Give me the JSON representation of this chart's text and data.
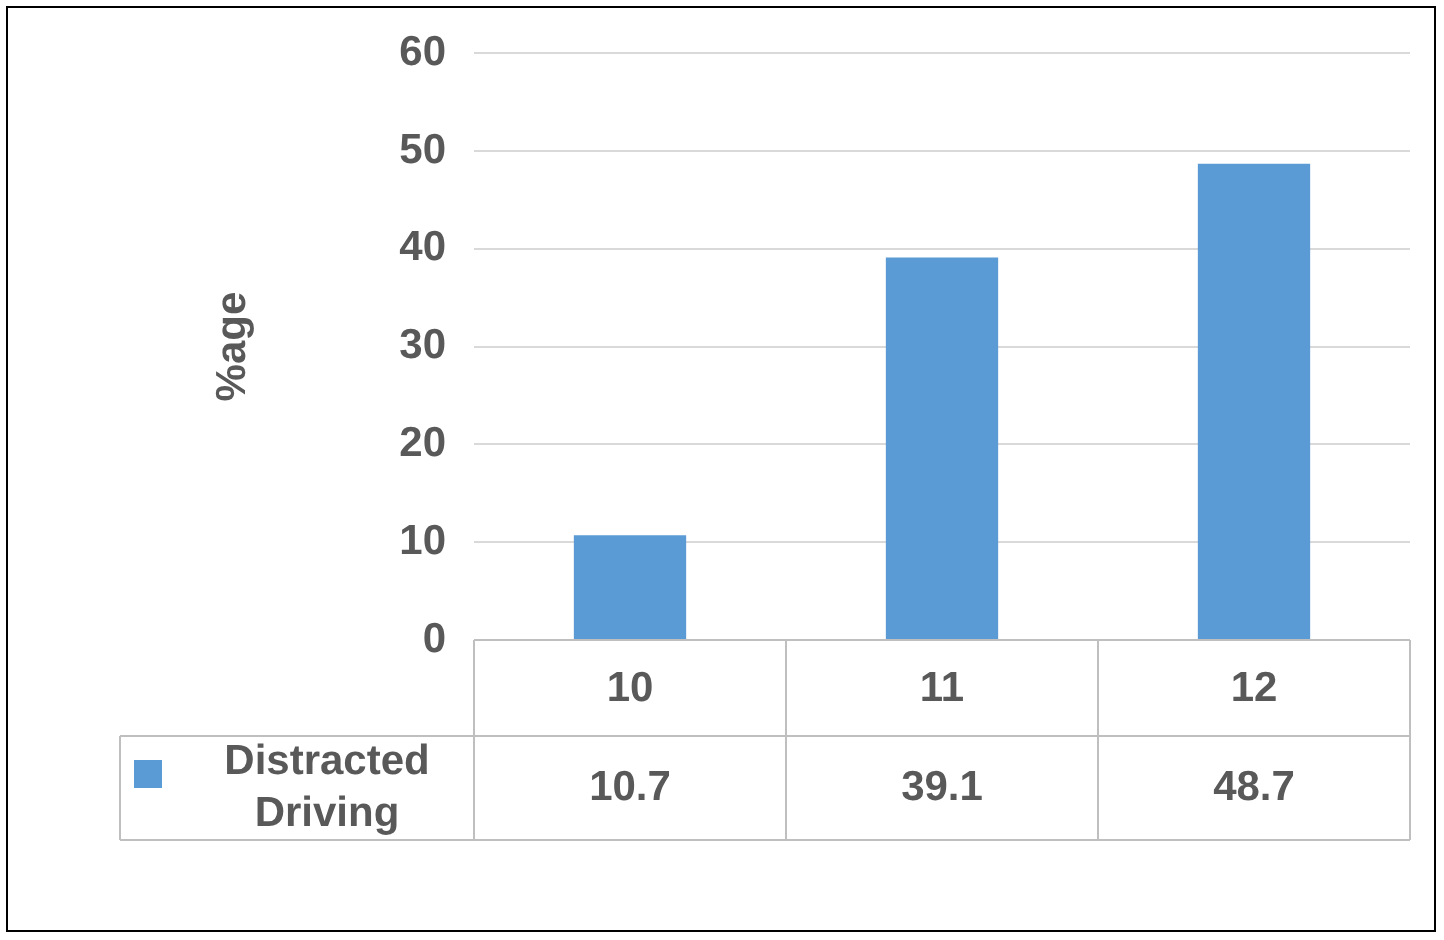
{
  "chart_data": {
    "type": "bar",
    "ylabel": "%age",
    "categories": [
      "10",
      "11",
      "12"
    ],
    "series": [
      {
        "name": "Distracted Driving",
        "color": "#5b9bd5",
        "values": [
          10.7,
          39.1,
          48.7
        ]
      }
    ],
    "ylim": [
      0,
      60
    ],
    "yticks": [
      0,
      10,
      20,
      30,
      40,
      50,
      60
    ],
    "grid": "y",
    "legend": "bottom left",
    "data_labels": true
  }
}
